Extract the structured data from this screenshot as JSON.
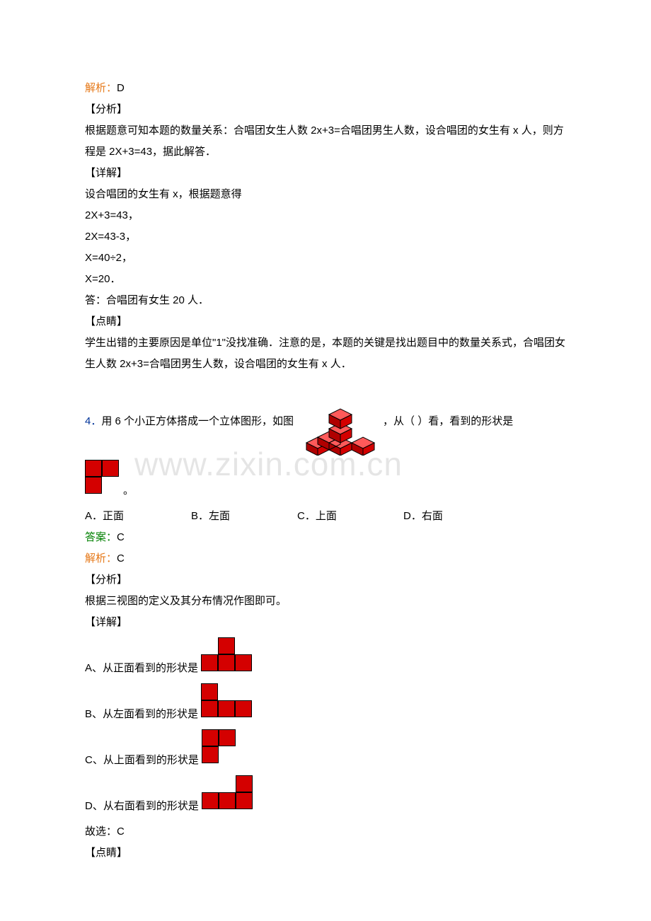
{
  "watermark": "www.zixin.com.cn",
  "colors": {
    "orange": "#e67817",
    "green": "#008000",
    "blue": "#003399",
    "cube_top": "#ff5a5a",
    "cube_left": "#b00000",
    "cube_right": "#d40000",
    "cube_edge": "#000000",
    "flat_fill": "#d40000",
    "flat_border": "#000000"
  },
  "solution_top": {
    "jiexi_label": "解析：",
    "jiexi_value": "D",
    "analysis_label": "【分析】",
    "analysis_text_1": "根据题意可知本题的数量关系：合唱团女生人数 2x+3=合唱团男生人数，设合唱团的女生有 x 人，则方程是 2X+3=43，据此解答．",
    "detail_label": "【详解】",
    "step_intro": "设合唱团的女生有 x，根据题意得",
    "step1": "2X+3=43，",
    "step2": "2X=43-3，",
    "step3": "X=40÷2，",
    "step4": "X=20．",
    "answer_line": "答：合唱团有女生 20 人．",
    "dianjing_label": "【点睛】",
    "dianjing_text": "学生出错的主要原因是单位\"1\"没找准确．注意的是，本题的关键是找出题目中的数量关系式，合唱团女生人数 2x+3=合唱团男生人数，设合唱团的女生有 x 人．"
  },
  "q4": {
    "number": "4．",
    "stem_before": "用 6 个小正方体搭成一个立体图形，如图",
    "stem_after": "，从（   ）看，看到的形状是",
    "period": "。",
    "options": {
      "A": "A．正面",
      "B": "B．左面",
      "C": "C．上面",
      "D": "D．右面"
    },
    "answer_label": "答案：",
    "answer_value": "C",
    "jiexi_label": "解析：",
    "jiexi_value": "C",
    "analysis_label": "【分析】",
    "analysis_text": "根据三视图的定义及其分布情况作图即可。",
    "detail_label": "【详解】",
    "viewA": "A、从正面看到的形状是",
    "viewB": "B、从左面看到的形状是",
    "viewC": "C、从上面看到的形状是",
    "viewD": "D、从右面看到的形状是",
    "conclusion": "故选：C",
    "dianjing_label": "【点睛】"
  },
  "shapes": {
    "question_target": [
      [
        1,
        1
      ],
      [
        1,
        0
      ]
    ],
    "viewA": [
      [
        0,
        1
      ],
      [
        1,
        1,
        1
      ]
    ],
    "viewB": [
      [
        1,
        0,
        0
      ],
      [
        1,
        1,
        1
      ]
    ],
    "viewC": [
      [
        1,
        1
      ],
      [
        1,
        0
      ]
    ],
    "viewD": [
      [
        0,
        0,
        1
      ],
      [
        1,
        1,
        1
      ]
    ]
  },
  "iso_figure": {
    "width": 110,
    "height": 96
  }
}
